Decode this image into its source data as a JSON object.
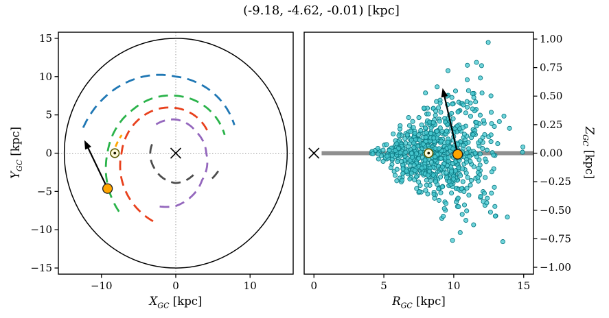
{
  "title": {
    "text": "(-9.18, -4.62, -0.01) [kpc]"
  },
  "style": {
    "background": "#ffffff",
    "frame": "#000000",
    "dotted": "#9a9a9a",
    "arrow": "#000000",
    "object_fill": "#ffa500",
    "object_edge": "#1a1a1a",
    "sun_ring": "#5a5a00",
    "sun_fill": "#fffbdc",
    "sun_dot": "#1a1a00"
  },
  "chart_data": [
    {
      "type": "scatter",
      "id": "galactic-xy-view",
      "xlabel": {
        "var": "X",
        "sub": "GC",
        "unit": " [kpc]"
      },
      "ylabel": {
        "var": "Y",
        "sub": "GC",
        "unit": " [kpc]"
      },
      "xlim": [
        -15.8,
        15.8
      ],
      "ylim": [
        -15.8,
        15.8
      ],
      "xticks": [
        -10,
        0,
        10
      ],
      "xtick_labels": [
        "−10",
        "0",
        "10"
      ],
      "yticks": [
        15,
        10,
        5,
        0,
        -5,
        -10,
        -15
      ],
      "ytick_labels": [
        "15",
        "10",
        "5",
        "0",
        "−5",
        "−10",
        "−15"
      ],
      "grid": "dotted-crosshair-at-origin",
      "boundary_circle_r": 15,
      "spiral_arms": [
        {
          "name": "outer-arm",
          "color": "#1f77b4",
          "points": [
            [
              165,
              12.9
            ],
            [
              90,
              10.0
            ],
            [
              25,
              8.7
            ]
          ]
        },
        {
          "name": "perseus-arm",
          "color": "#2ab34a",
          "points": [
            [
              225,
              10.8
            ],
            [
              180,
              9.2
            ],
            [
              135,
              8.1
            ],
            [
              90,
              7.5
            ],
            [
              20,
              7.0
            ]
          ]
        },
        {
          "name": "scutum-arm",
          "color": "#e8401c",
          "points": [
            [
              251,
              9.4
            ],
            [
              180,
              7.3
            ],
            [
              90,
              5.9
            ],
            [
              30,
              5.1
            ]
          ]
        },
        {
          "name": "sagittarius-arm",
          "color": "#9467bd",
          "points": [
            [
              125,
              4.6
            ],
            [
              90,
              4.4
            ],
            [
              45,
              3.9
            ],
            [
              0,
              4.1
            ],
            [
              -45,
              5.0
            ],
            [
              -90,
              6.9
            ],
            [
              -112,
              7.4
            ]
          ]
        },
        {
          "name": "norma-arm",
          "color": "#4d4d4d",
          "points": [
            [
              160,
              3.4
            ],
            [
              220,
              3.5
            ],
            [
              270,
              3.9
            ],
            [
              310,
              3.7
            ]
          ]
        },
        {
          "name": "norma-arm-outer-segment",
          "color": "#4d4d4d",
          "points": [
            [
              -34,
              5.9
            ],
            [
              -17,
              6.3
            ]
          ]
        },
        {
          "name": "local-arm",
          "color": "#ffa500",
          "dash": "8 6",
          "points": [
            [
              174,
              8.15
            ],
            [
              162,
              7.65
            ]
          ]
        }
      ],
      "sun": {
        "x": -8.2,
        "y": 0
      },
      "object": {
        "x": -9.18,
        "y": -4.62
      },
      "arrow": {
        "x1": -9.18,
        "y1": -4.62,
        "x2": -12.3,
        "y2": 1.7
      },
      "center_marker": {
        "x": 0,
        "y": 0,
        "symbol": "x"
      }
    },
    {
      "type": "scatter",
      "id": "galactic-rz-view",
      "xlabel": {
        "var": "R",
        "sub": "GC",
        "unit": " [kpc]"
      },
      "ylabel": {
        "var": "Z",
        "sub": "GC",
        "unit": " [kpc]"
      },
      "xlim": [
        -0.7,
        15.7
      ],
      "ylim": [
        -1.06,
        1.06
      ],
      "xticks": [
        0,
        5,
        10,
        15
      ],
      "xtick_labels": [
        "0",
        "5",
        "10",
        "15"
      ],
      "yticks": [
        1,
        0.75,
        0.5,
        0.25,
        0,
        -0.25,
        -0.5,
        -0.75,
        -1
      ],
      "ytick_labels": [
        "1.00",
        "0.75",
        "0.50",
        "0.25",
        "0.00",
        "−0.25",
        "−0.50",
        "−0.75",
        "−1.00"
      ],
      "y_axis_side": "right",
      "midplane_line": {
        "z": 0,
        "r_start": 0.55,
        "r_end": 15.7,
        "color": "#8f8f8f",
        "width": 6
      },
      "scatter_cloud": {
        "n": 760,
        "seed": 11,
        "r_mean": 8.8,
        "r_sigma": 2.05,
        "r_min": 4.0,
        "r_max": 15.5,
        "z_sigma_per_kpc": 0.04,
        "z_sigma_ref_r": 3.8,
        "z_sigma_min": 0.025,
        "fill": "#48c9d1",
        "edge": "#0d7b85",
        "opacity": 0.78,
        "radius_px": 3.1
      },
      "sun": {
        "r": 8.2,
        "z": 0
      },
      "object": {
        "r": 10.28,
        "z": -0.01
      },
      "arrow": {
        "x1": 10.28,
        "y1": -0.01,
        "x2": 9.2,
        "y2": 0.57
      },
      "center_marker": {
        "x": 0,
        "y": 0,
        "symbol": "x"
      }
    }
  ]
}
